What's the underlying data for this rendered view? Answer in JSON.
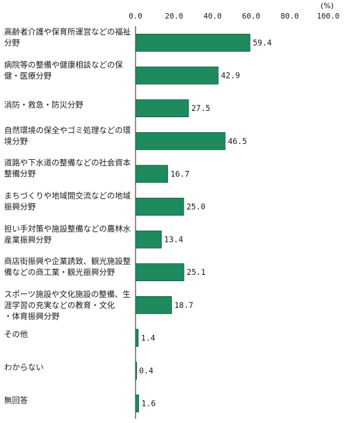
{
  "chart_data": {
    "type": "bar",
    "orientation": "horizontal",
    "unit": "(%)",
    "xlim": [
      0,
      100
    ],
    "ticks": [
      "0.0",
      "20.0",
      "40.0",
      "60.0",
      "80.0",
      "100.0"
    ],
    "bar_color": "#1f8a5e",
    "categories": [
      "高齢者介護や保育所運営などの福祉\n分野",
      "病院等の整備や健康相談などの保\n健・医療分野",
      "消防・救急・防災分野",
      "自然環境の保全やゴミ処理などの環\n境分野",
      "道路や下水道の整備などの社会資本\n整備分野",
      "まちづくりや地域間交流などの地域\n振興分野",
      "担い手対策や施設整備などの農林水\n産業振興分野",
      "商店街振興や企業誘致、観光施設整\n備などの商工業・観光振興分野",
      "スポーツ施設や文化施設の整備、生\n涯学習の充実などの教育・文化\n・体育振興分野",
      "その他",
      "わからない",
      "無回答"
    ],
    "values": [
      59.4,
      42.9,
      27.5,
      46.5,
      16.7,
      25.0,
      13.4,
      25.1,
      18.7,
      1.4,
      0.4,
      1.6
    ],
    "value_labels": [
      "59.4",
      "42.9",
      "27.5",
      "46.5",
      "16.7",
      "25.0",
      "13.4",
      "25.1",
      "18.7",
      "1.4",
      "0.4",
      "1.6"
    ]
  }
}
